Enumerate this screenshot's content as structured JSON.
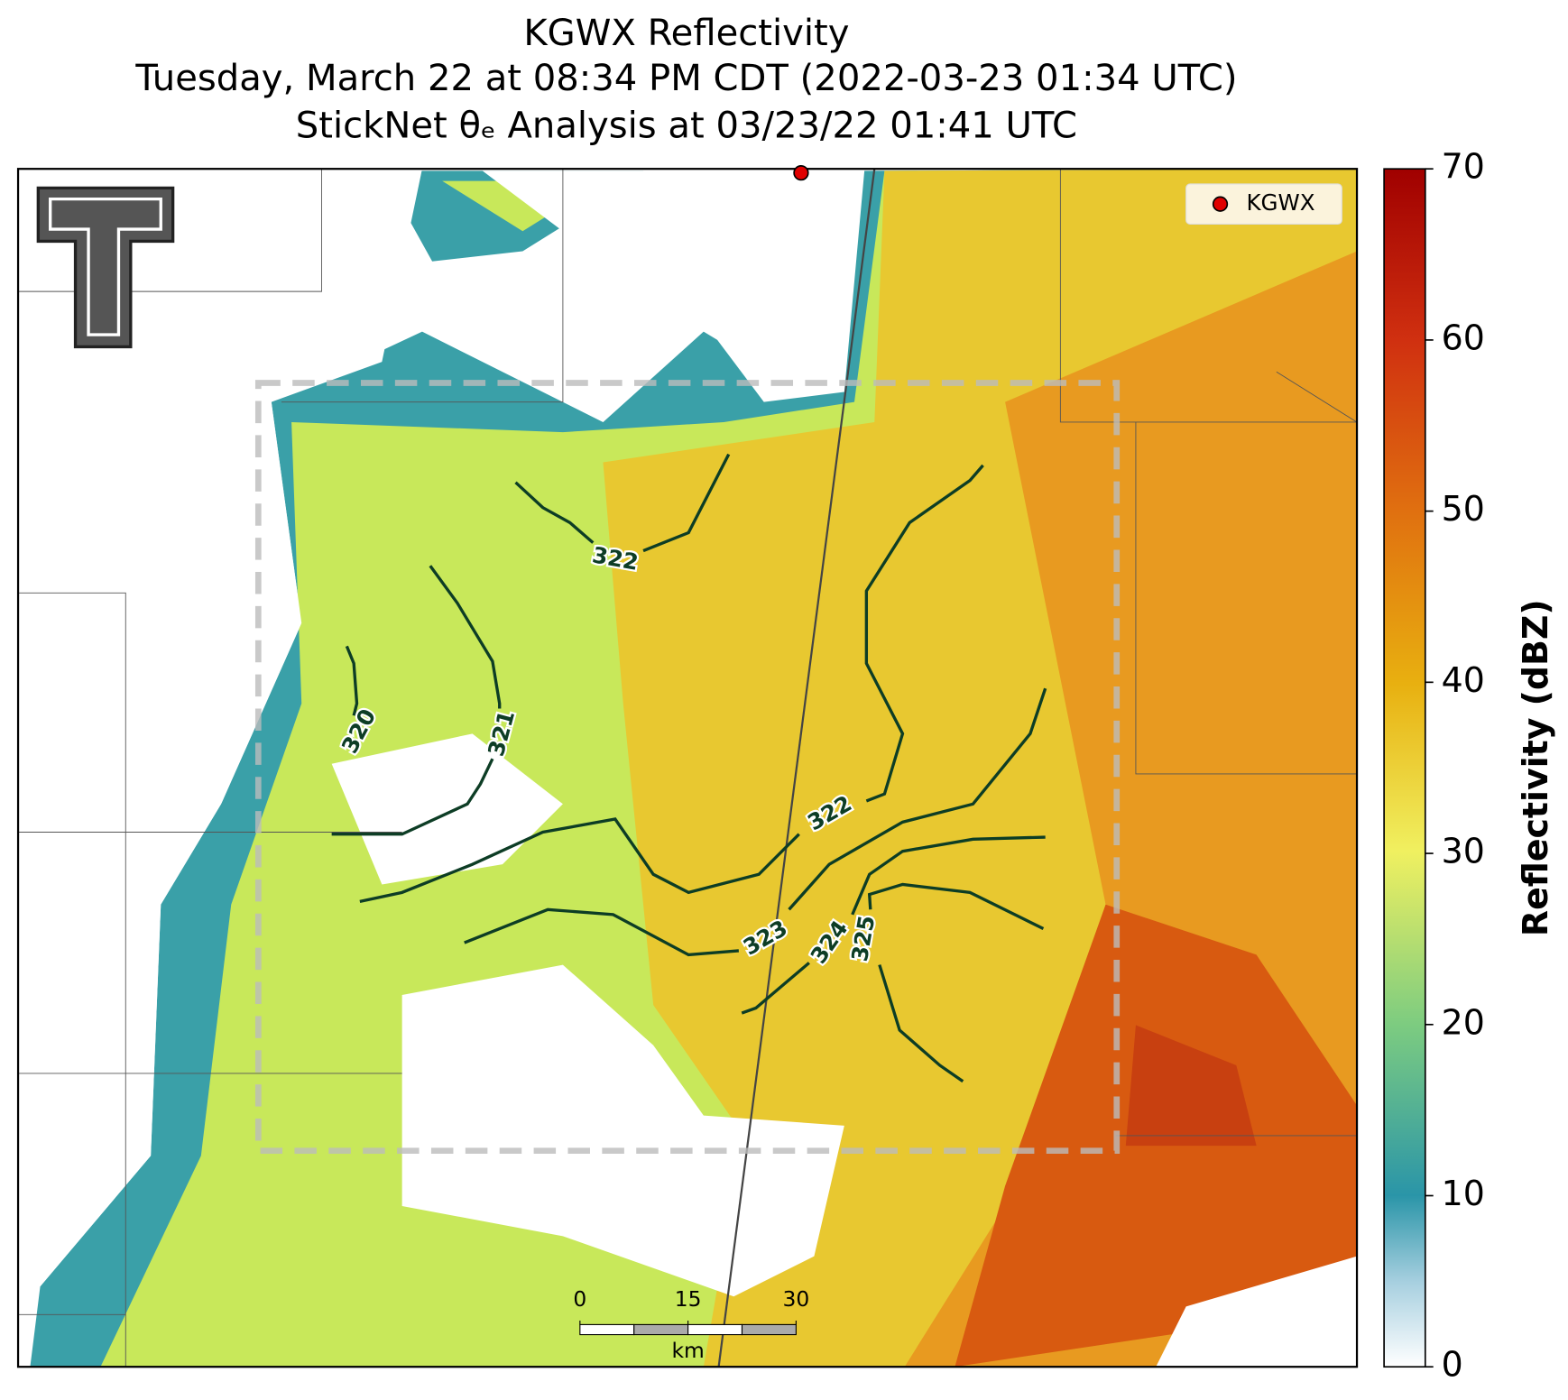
{
  "title_lines": [
    "KGWX Reflectivity",
    "Tuesday, March 22 at 08:34 PM CDT (2022-03-23 01:34 UTC)",
    "StickNet θₑ Analysis at 03/23/22 01:41 UTC"
  ],
  "legend": {
    "label": "KGWX"
  },
  "contours": [
    {
      "level": 322
    },
    {
      "level": 320
    },
    {
      "level": 321
    },
    {
      "level": 322
    },
    {
      "level": 323
    },
    {
      "level": 324
    },
    {
      "level": 325
    }
  ],
  "scale_bar": {
    "ticks": [
      0,
      15,
      30
    ],
    "unit": "km"
  },
  "colorbar": {
    "label": "Reflectivity (dBZ)",
    "lim": [
      0,
      70
    ],
    "ticks": [
      0,
      10,
      20,
      30,
      40,
      50,
      60,
      70
    ]
  }
}
